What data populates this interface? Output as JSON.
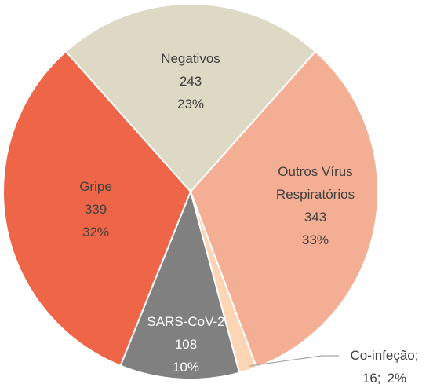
{
  "chart_data": {
    "type": "pie",
    "categories": [
      "Negativos",
      "Outros Vírus Respiratórios",
      "Co-infeção;",
      "SARS-CoV-2",
      "Gripe"
    ],
    "values": [
      243,
      343,
      16,
      108,
      339
    ],
    "value_labels": [
      "243",
      "343",
      "16;",
      "108",
      "339"
    ],
    "percent_labels": [
      "23%",
      "33%",
      "2%",
      "10%",
      "32%"
    ],
    "colors": [
      "#ddd9c4",
      "#f4ae93",
      "#fcd5b4",
      "#808080",
      "#ee6647"
    ]
  }
}
